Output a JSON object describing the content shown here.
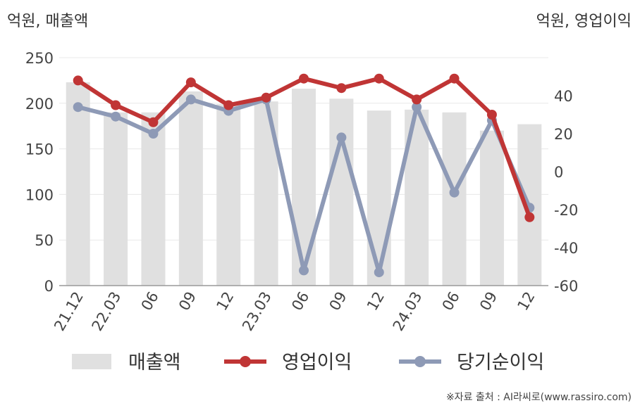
{
  "units": {
    "left": "억원, 매출액",
    "right": "억원, 영업이익"
  },
  "source_note": "※자료 출처 : AI라씨로(www.rassiro.com)",
  "colors": {
    "sales": "#e0e0e0",
    "operating_profit": "#c03535",
    "net_income": "#8e9ab6",
    "grid": "#e8e8e8",
    "axis": "#999999"
  },
  "chart_data": {
    "type": "bar+line",
    "categories": [
      "21.12",
      "22.03",
      "06",
      "09",
      "12",
      "23.03",
      "06",
      "09",
      "12",
      "24.03",
      "06",
      "09",
      "12"
    ],
    "y_left": {
      "range": [
        0,
        250
      ],
      "ticks": [
        0,
        50,
        100,
        150,
        200,
        250
      ]
    },
    "y_right": {
      "range": [
        -60,
        60
      ],
      "ticks": [
        -60,
        -40,
        -20,
        0,
        20,
        40
      ]
    },
    "grid": true,
    "legend_position": "bottom",
    "series": [
      {
        "name": "매출액",
        "type": "bar",
        "axis": "left",
        "values": [
          223,
          190,
          190,
          213,
          199,
          202,
          216,
          205,
          192,
          193,
          190,
          170,
          177
        ]
      },
      {
        "name": "영업이익",
        "type": "line",
        "axis": "right",
        "values": [
          48,
          35,
          26,
          47,
          35,
          39,
          49,
          44,
          49,
          38,
          49,
          30,
          -24
        ]
      },
      {
        "name": "당기순이익",
        "type": "line",
        "axis": "right",
        "values": [
          34,
          29,
          20,
          38,
          32,
          38,
          -52,
          18,
          -53,
          34,
          -11,
          27,
          -19
        ]
      }
    ]
  }
}
